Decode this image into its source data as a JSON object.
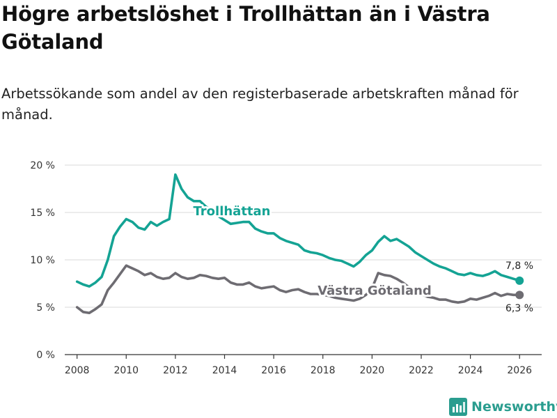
{
  "title": "Högre arbetslöshet i Trollhättan än i Västra Götaland",
  "subtitle": "Arbetssökande som andel av den registerbaserade arbetskraften månad för månad.",
  "brand": {
    "name": "Newsworthy",
    "icon": "newsworthy-logo-icon"
  },
  "colors": {
    "trollhattan": "#14a394",
    "vastra_gotaland": "#6e6c72",
    "grid": "#d9d9d9",
    "axis": "#333333"
  },
  "chart_data": {
    "type": "line",
    "title": "Högre arbetslöshet i Trollhättan än i Västra Götaland",
    "xlabel": "",
    "ylabel": "",
    "xlim": [
      2007.5,
      2026.9
    ],
    "ylim": [
      0,
      20
    ],
    "y_ticks": [
      0,
      5,
      10,
      15,
      20
    ],
    "y_tick_labels": [
      "0 %",
      "5 %",
      "10 %",
      "15 %",
      "20 %"
    ],
    "x_ticks": [
      2008,
      2010,
      2012,
      2014,
      2016,
      2018,
      2020,
      2022,
      2024,
      2026
    ],
    "x_tick_labels": [
      "2008",
      "2010",
      "2012",
      "2014",
      "2016",
      "2018",
      "2020",
      "2022",
      "2024",
      "2026"
    ],
    "grid": true,
    "series": [
      {
        "name": "Trollhättan",
        "label": "Trollhättan",
        "end_label": "7,8 %",
        "end_value": 7.8,
        "x": [
          2008.0,
          2008.25,
          2008.5,
          2008.75,
          2009.0,
          2009.25,
          2009.5,
          2009.75,
          2010.0,
          2010.25,
          2010.5,
          2010.75,
          2011.0,
          2011.25,
          2011.5,
          2011.75,
          2012.0,
          2012.25,
          2012.5,
          2012.75,
          2013.0,
          2013.25,
          2013.5,
          2013.75,
          2014.0,
          2014.25,
          2014.5,
          2014.75,
          2015.0,
          2015.25,
          2015.5,
          2015.75,
          2016.0,
          2016.25,
          2016.5,
          2016.75,
          2017.0,
          2017.25,
          2017.5,
          2017.75,
          2018.0,
          2018.25,
          2018.5,
          2018.75,
          2019.0,
          2019.25,
          2019.5,
          2019.75,
          2020.0,
          2020.25,
          2020.5,
          2020.75,
          2021.0,
          2021.25,
          2021.5,
          2021.75,
          2022.0,
          2022.25,
          2022.5,
          2022.75,
          2023.0,
          2023.25,
          2023.5,
          2023.75,
          2024.0,
          2024.25,
          2024.5,
          2024.75,
          2025.0,
          2025.25,
          2025.5,
          2025.75,
          2026.0
        ],
        "values": [
          7.7,
          7.4,
          7.2,
          7.6,
          8.2,
          10.0,
          12.5,
          13.5,
          14.3,
          14.0,
          13.4,
          13.2,
          14.0,
          13.6,
          14.0,
          14.3,
          19.0,
          17.5,
          16.6,
          16.2,
          16.2,
          15.6,
          15.2,
          14.6,
          14.2,
          13.8,
          13.9,
          14.0,
          14.0,
          13.3,
          13.0,
          12.8,
          12.8,
          12.3,
          12.0,
          11.8,
          11.6,
          11.0,
          10.8,
          10.7,
          10.5,
          10.2,
          10.0,
          9.9,
          9.6,
          9.3,
          9.8,
          10.5,
          11.0,
          11.9,
          12.5,
          12.0,
          12.2,
          11.8,
          11.4,
          10.8,
          10.4,
          10.0,
          9.6,
          9.3,
          9.1,
          8.8,
          8.5,
          8.4,
          8.6,
          8.4,
          8.3,
          8.5,
          8.8,
          8.4,
          8.2,
          8.0,
          7.8
        ]
      },
      {
        "name": "Västra Götaland",
        "label": "Västra Götaland",
        "end_label": "6,3 %",
        "end_value": 6.3,
        "x": [
          2008.0,
          2008.25,
          2008.5,
          2008.75,
          2009.0,
          2009.25,
          2009.5,
          2009.75,
          2010.0,
          2010.25,
          2010.5,
          2010.75,
          2011.0,
          2011.25,
          2011.5,
          2011.75,
          2012.0,
          2012.25,
          2012.5,
          2012.75,
          2013.0,
          2013.25,
          2013.5,
          2013.75,
          2014.0,
          2014.25,
          2014.5,
          2014.75,
          2015.0,
          2015.25,
          2015.5,
          2015.75,
          2016.0,
          2016.25,
          2016.5,
          2016.75,
          2017.0,
          2017.25,
          2017.5,
          2017.75,
          2018.0,
          2018.25,
          2018.5,
          2018.75,
          2019.0,
          2019.25,
          2019.5,
          2019.75,
          2020.0,
          2020.25,
          2020.5,
          2020.75,
          2021.0,
          2021.25,
          2021.5,
          2021.75,
          2022.0,
          2022.25,
          2022.5,
          2022.75,
          2023.0,
          2023.25,
          2023.5,
          2023.75,
          2024.0,
          2024.25,
          2024.5,
          2024.75,
          2025.0,
          2025.25,
          2025.5,
          2025.75,
          2026.0
        ],
        "values": [
          5.0,
          4.5,
          4.4,
          4.8,
          5.3,
          6.8,
          7.6,
          8.5,
          9.4,
          9.1,
          8.8,
          8.4,
          8.6,
          8.2,
          8.0,
          8.1,
          8.6,
          8.2,
          8.0,
          8.1,
          8.4,
          8.3,
          8.1,
          8.0,
          8.1,
          7.6,
          7.4,
          7.4,
          7.6,
          7.2,
          7.0,
          7.1,
          7.2,
          6.8,
          6.6,
          6.8,
          6.9,
          6.6,
          6.4,
          6.4,
          6.3,
          6.2,
          6.0,
          5.9,
          5.8,
          5.7,
          5.9,
          6.3,
          7.0,
          8.6,
          8.4,
          8.3,
          8.0,
          7.6,
          7.1,
          6.6,
          6.4,
          6.1,
          6.0,
          5.8,
          5.8,
          5.6,
          5.5,
          5.6,
          5.9,
          5.8,
          6.0,
          6.2,
          6.5,
          6.2,
          6.4,
          6.3,
          6.3
        ]
      }
    ]
  }
}
